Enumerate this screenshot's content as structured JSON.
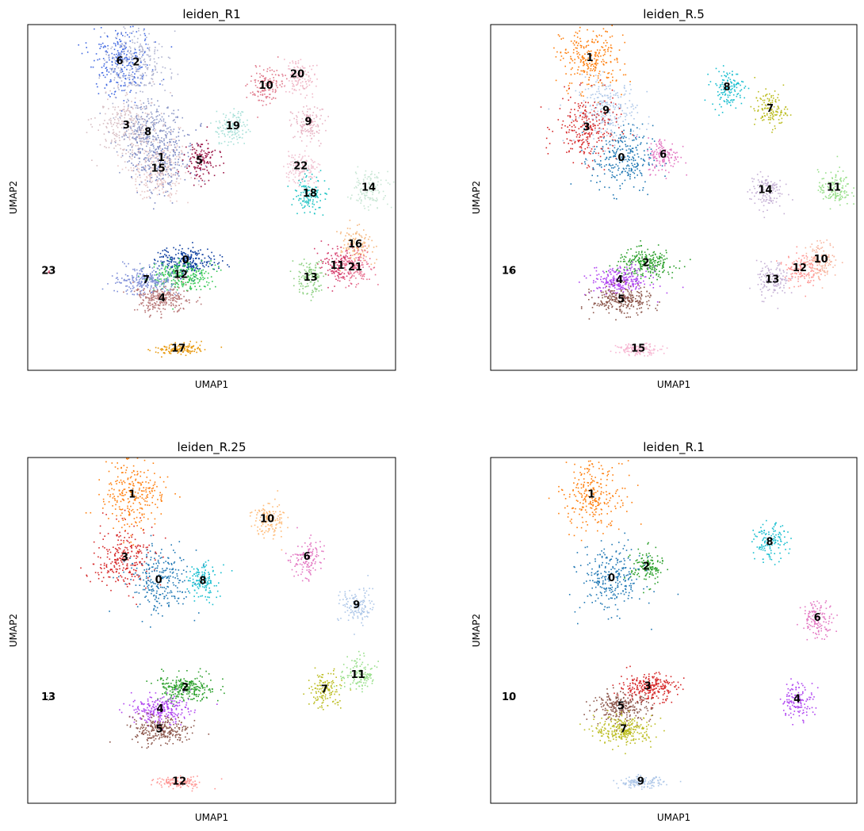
{
  "chart_data": [
    {
      "type": "scatter",
      "title": "leiden_R1",
      "xlabel": "UMAP1",
      "ylabel": "UMAP2",
      "xlim": [
        0,
        100
      ],
      "ylim": [
        0,
        100
      ],
      "grid": false,
      "clusters": [
        {
          "label": "6",
          "color": "#4169e1",
          "x": 25.0,
          "y": 89.3
        },
        {
          "label": "2",
          "color": "#b0b4d0",
          "x": 29.5,
          "y": 89.0
        },
        {
          "label": "3",
          "color": "#d8bfc4",
          "x": 26.8,
          "y": 70.7
        },
        {
          "label": "8",
          "color": "#8e9ac8",
          "x": 32.7,
          "y": 68.8
        },
        {
          "label": "1",
          "color": "#7a87c2",
          "x": 36.3,
          "y": 61.3
        },
        {
          "label": "15",
          "color": "#e8c8c8",
          "x": 35.5,
          "y": 58.3
        },
        {
          "label": "5",
          "color": "#9b1445",
          "x": 46.7,
          "y": 60.6
        },
        {
          "label": "19",
          "color": "#a8e0d8",
          "x": 55.8,
          "y": 70.5
        },
        {
          "label": "10",
          "color": "#e07a8c",
          "x": 64.8,
          "y": 82.2
        },
        {
          "label": "20",
          "color": "#f0b8c8",
          "x": 73.3,
          "y": 85.5
        },
        {
          "label": "9",
          "color": "#e8b4c4",
          "x": 76.3,
          "y": 71.8
        },
        {
          "label": "22",
          "color": "#f0c0d0",
          "x": 74.2,
          "y": 59.0
        },
        {
          "label": "18",
          "color": "#20c4c4",
          "x": 76.7,
          "y": 51.0
        },
        {
          "label": "14",
          "color": "#c8e6d4",
          "x": 92.7,
          "y": 52.7
        },
        {
          "label": "16",
          "color": "#f6b880",
          "x": 89.0,
          "y": 36.3
        },
        {
          "label": "11",
          "color": "#d43c6c",
          "x": 84.2,
          "y": 30.2
        },
        {
          "label": "21",
          "color": "#e87090",
          "x": 89.0,
          "y": 29.7
        },
        {
          "label": "13",
          "color": "#8cd080",
          "x": 76.9,
          "y": 26.7
        },
        {
          "label": "0",
          "color": "#0b3c9e",
          "x": 42.9,
          "y": 31.8
        },
        {
          "label": "12",
          "color": "#30c850",
          "x": 41.6,
          "y": 27.5
        },
        {
          "label": "7",
          "color": "#8090d8",
          "x": 32.2,
          "y": 26.0
        },
        {
          "label": "4",
          "color": "#b87878",
          "x": 36.5,
          "y": 20.7
        },
        {
          "label": "17",
          "color": "#e89a10",
          "x": 41.0,
          "y": 6.2
        },
        {
          "label": "23",
          "color": "#d04060",
          "x": 5.7,
          "y": 28.7
        }
      ]
    },
    {
      "type": "scatter",
      "title": "leiden_R.5",
      "xlabel": "UMAP1",
      "ylabel": "UMAP2",
      "xlim": [
        0,
        100
      ],
      "ylim": [
        0,
        100
      ],
      "grid": false,
      "clusters": [
        {
          "label": "1",
          "color": "#ff7f0e",
          "x": 27.1,
          "y": 90.2
        },
        {
          "label": "9",
          "color": "#aec7e8",
          "x": 31.5,
          "y": 75.0
        },
        {
          "label": "3",
          "color": "#d62728",
          "x": 26.2,
          "y": 70.2
        },
        {
          "label": "0",
          "color": "#1f77b4",
          "x": 35.7,
          "y": 61.3
        },
        {
          "label": "6",
          "color": "#e377c2",
          "x": 47.1,
          "y": 62.3
        },
        {
          "label": "8",
          "color": "#17becf",
          "x": 64.5,
          "y": 81.8
        },
        {
          "label": "7",
          "color": "#bcbd22",
          "x": 76.3,
          "y": 75.6
        },
        {
          "label": "14",
          "color": "#c5b0d5",
          "x": 75.0,
          "y": 52.1
        },
        {
          "label": "11",
          "color": "#98df8a",
          "x": 93.7,
          "y": 52.7
        },
        {
          "label": "10",
          "color": "#f7b6a0",
          "x": 90.2,
          "y": 32.0
        },
        {
          "label": "12",
          "color": "#ff9896",
          "x": 84.4,
          "y": 29.5
        },
        {
          "label": "13",
          "color": "#c5b0d5",
          "x": 76.9,
          "y": 26.2
        },
        {
          "label": "2",
          "color": "#2ca02c",
          "x": 42.4,
          "y": 31.0
        },
        {
          "label": "4",
          "color": "#b045f0",
          "x": 35.2,
          "y": 26.0
        },
        {
          "label": "5",
          "color": "#8c564b",
          "x": 35.7,
          "y": 20.4
        },
        {
          "label": "15",
          "color": "#f7b6d2",
          "x": 40.3,
          "y": 6.2
        },
        {
          "label": "16",
          "color": "#7f7f7f",
          "x": 5.0,
          "y": 28.7
        }
      ]
    },
    {
      "type": "scatter",
      "title": "leiden_R.25",
      "xlabel": "UMAP1",
      "ylabel": "UMAP2",
      "xlim": [
        0,
        100
      ],
      "ylim": [
        0,
        100
      ],
      "grid": false,
      "clusters": [
        {
          "label": "1",
          "color": "#ff7f0e",
          "x": 28.4,
          "y": 89.2
        },
        {
          "label": "3",
          "color": "#d62728",
          "x": 26.4,
          "y": 71.0
        },
        {
          "label": "0",
          "color": "#1f77b4",
          "x": 35.6,
          "y": 64.4
        },
        {
          "label": "8",
          "color": "#17becf",
          "x": 47.6,
          "y": 64.2
        },
        {
          "label": "10",
          "color": "#ffbb78",
          "x": 65.1,
          "y": 82.1
        },
        {
          "label": "6",
          "color": "#e377c2",
          "x": 75.9,
          "y": 71.2
        },
        {
          "label": "9",
          "color": "#aec7e8",
          "x": 89.4,
          "y": 57.2
        },
        {
          "label": "11",
          "color": "#98df8a",
          "x": 89.8,
          "y": 37.0
        },
        {
          "label": "7",
          "color": "#bcbd22",
          "x": 80.7,
          "y": 32.8
        },
        {
          "label": "2",
          "color": "#2ca02c",
          "x": 42.8,
          "y": 33.4
        },
        {
          "label": "4",
          "color": "#b045f0",
          "x": 36.0,
          "y": 27.2
        },
        {
          "label": "5",
          "color": "#8c564b",
          "x": 35.8,
          "y": 21.3
        },
        {
          "label": "12",
          "color": "#ff9896",
          "x": 41.2,
          "y": 6.2
        },
        {
          "label": "13",
          "color": "#7f7f7f",
          "x": 5.6,
          "y": 30.6
        }
      ]
    },
    {
      "type": "scatter",
      "title": "leiden_R.1",
      "xlabel": "UMAP1",
      "ylabel": "UMAP2",
      "xlim": [
        0,
        100
      ],
      "ylim": [
        0,
        100
      ],
      "grid": false,
      "clusters": [
        {
          "label": "1",
          "color": "#ff7f0e",
          "x": 27.5,
          "y": 89.2
        },
        {
          "label": "0",
          "color": "#1f77b4",
          "x": 33.0,
          "y": 65.0
        },
        {
          "label": "2",
          "color": "#2ca02c",
          "x": 42.5,
          "y": 68.4
        },
        {
          "label": "8",
          "color": "#17becf",
          "x": 76.2,
          "y": 75.5
        },
        {
          "label": "6",
          "color": "#e377c2",
          "x": 89.2,
          "y": 53.6
        },
        {
          "label": "4",
          "color": "#b045f0",
          "x": 83.7,
          "y": 30.0
        },
        {
          "label": "3",
          "color": "#d62728",
          "x": 42.9,
          "y": 33.7
        },
        {
          "label": "5",
          "color": "#8c564b",
          "x": 35.6,
          "y": 28.0
        },
        {
          "label": "7",
          "color": "#bcbd22",
          "x": 36.3,
          "y": 21.3
        },
        {
          "label": "9",
          "color": "#aec7e8",
          "x": 41.0,
          "y": 6.2
        },
        {
          "label": "10",
          "color": "#7f7f7f",
          "x": 5.0,
          "y": 30.6
        }
      ]
    }
  ]
}
